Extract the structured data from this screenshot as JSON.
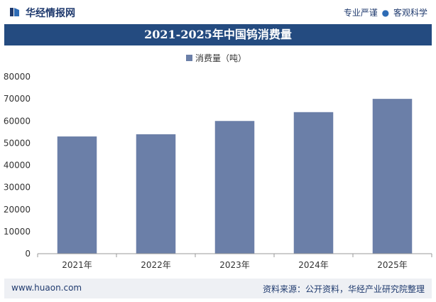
{
  "header": {
    "site_name": "华经情报网",
    "right_a": "专业严谨",
    "right_sep": "●",
    "right_b": "客观科学"
  },
  "footer": {
    "url": "www.huaon.com",
    "source": "资料来源：公开资料，华经产业研究院整理"
  },
  "colors": {
    "bar": "#6b7fa8",
    "title_bg": "#244b80",
    "brand": "#1f3a6e"
  },
  "chart_data": {
    "type": "bar",
    "title": "2021-2025年中国钨消费量",
    "categories": [
      "2021年",
      "2022年",
      "2023年",
      "2024年",
      "2025年"
    ],
    "series": [
      {
        "name": "消费量（吨）",
        "values": [
          53000,
          54000,
          60000,
          64000,
          70000
        ]
      }
    ],
    "ylim": [
      0,
      80000
    ],
    "yticks": [
      0,
      10000,
      20000,
      30000,
      40000,
      50000,
      60000,
      70000,
      80000
    ],
    "legend": "top-center",
    "grid": false
  }
}
